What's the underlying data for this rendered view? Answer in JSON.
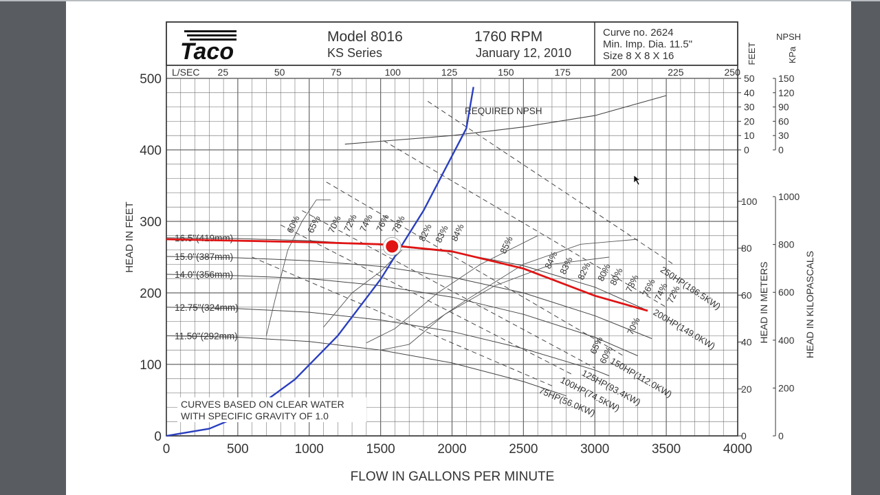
{
  "header": {
    "logo_text": "Taco",
    "model": "Model 8016",
    "series": "KS Series",
    "rpm": "1760 RPM",
    "date": "January 12, 2010",
    "curve_no": "Curve no. 2624",
    "min_imp": "Min. Imp. Dia. 11.5\"",
    "size": "Size 8 X 8 X 16"
  },
  "note": {
    "line1": "CURVES BASED ON CLEAR WATER",
    "line2": "WITH SPECIFIC GRAVITY OF 1.0"
  },
  "colors": {
    "system_curve": "#2a3fbf",
    "operating_curve": "#e01414",
    "point": "#e01414",
    "grid": "#555555"
  },
  "chart_data": {
    "type": "line",
    "xlabel": "FLOW IN GALLONS PER MINUTE",
    "ylabel": "HEAD IN FEET",
    "xlim": [
      0,
      4000
    ],
    "ylim": [
      0,
      500
    ],
    "x_ticks": [
      "0",
      "500",
      "1000",
      "1500",
      "2000",
      "2500",
      "3000",
      "3500",
      "4000"
    ],
    "y_ticks": [
      "0",
      "100",
      "200",
      "300",
      "400",
      "500"
    ],
    "lsec_axis": {
      "label": "L/SEC",
      "ticks": [
        "25",
        "50",
        "75",
        "100",
        "125",
        "150",
        "175",
        "200",
        "225",
        "250"
      ]
    },
    "npsh_axis": {
      "label": "NPSH",
      "feet_label": "FEET",
      "kpa_label": "KPa",
      "feet_ticks": [
        "50",
        "40",
        "30",
        "20",
        "10",
        "0"
      ],
      "kpa_ticks": [
        "150",
        "120",
        "90",
        "60",
        "30",
        "0"
      ]
    },
    "meters_axis": {
      "label": "HEAD IN METERS",
      "ticks": [
        "100",
        "80",
        "60",
        "40",
        "20",
        "0"
      ]
    },
    "kpa_axis": {
      "label": "HEAD IN KILOPASCALS",
      "ticks": [
        "1000",
        "800",
        "600",
        "400",
        "200",
        "0"
      ]
    },
    "impellers": [
      {
        "label": "16.5\"(419mm)",
        "x": [
          0,
          500,
          1000,
          1500,
          2000,
          2500,
          3000,
          3350
        ],
        "y": [
          277,
          276,
          273,
          267,
          257,
          238,
          208,
          177
        ]
      },
      {
        "label": "15.0\"(387mm)",
        "x": [
          0,
          500,
          1000,
          1500,
          2000,
          2500,
          3000,
          3400
        ],
        "y": [
          251,
          249,
          245,
          237,
          222,
          200,
          168,
          136
        ]
      },
      {
        "label": "14.0\"(356mm)",
        "x": [
          0,
          500,
          1000,
          1500,
          2000,
          2500,
          3000,
          3300
        ],
        "y": [
          226,
          224,
          220,
          210,
          194,
          170,
          138,
          112
        ]
      },
      {
        "label": "12.75\"(324mm)",
        "x": [
          0,
          500,
          1000,
          1500,
          2000,
          2500,
          3000,
          3100
        ],
        "y": [
          180,
          178,
          173,
          162,
          146,
          122,
          92,
          84
        ]
      },
      {
        "label": "11.50\"(292mm)",
        "x": [
          0,
          500,
          1000,
          1500,
          2000,
          2500,
          2800
        ],
        "y": [
          140,
          138,
          132,
          120,
          102,
          76,
          56
        ]
      }
    ],
    "system_curve": {
      "name": "",
      "x": [
        0,
        300,
        600,
        900,
        1200,
        1500,
        1800,
        2100,
        2150
      ],
      "y": [
        0,
        10,
        35,
        79,
        140,
        219,
        315,
        430,
        488
      ]
    },
    "operating_curve": {
      "name": "",
      "x": [
        0,
        500,
        1000,
        1500,
        1600,
        2000,
        2500,
        3000,
        3370
      ],
      "y": [
        275,
        273,
        271,
        268,
        266,
        258,
        234,
        196,
        175
      ]
    },
    "operating_point": {
      "x": 1580,
      "y": 265
    },
    "npsh_curve": {
      "label": "REQUIRED NPSH",
      "x": [
        1250,
        1500,
        2000,
        2500,
        3000,
        3500
      ],
      "y": [
        4,
        6,
        10,
        16,
        24,
        38
      ]
    },
    "efficiency_labels": [
      "60%",
      "65%",
      "70%",
      "72%",
      "74%",
      "76%",
      "78%",
      "80%",
      "82%",
      "83%",
      "84%",
      "85%",
      "84%",
      "83%",
      "82%",
      "80%",
      "78%",
      "76%",
      "74%",
      "72%",
      "70%",
      "65%",
      "60%"
    ],
    "hp_lines": [
      {
        "label": "250HP(186.5KW)",
        "x": [
          1830,
          3550
        ],
        "y": [
          468,
          240
        ]
      },
      {
        "label": "200HP(149.0KW)",
        "x": [
          1520,
          3500
        ],
        "y": [
          413,
          180
        ]
      },
      {
        "label": "150HP(112.0KW)",
        "x": [
          1120,
          3200
        ],
        "y": [
          355,
          112
        ]
      },
      {
        "label": "125HP(93.4KW)",
        "x": [
          950,
          3000
        ],
        "y": [
          315,
          95
        ]
      },
      {
        "label": "100HP(74.5KW)",
        "x": [
          800,
          2850
        ],
        "y": [
          295,
          85
        ]
      },
      {
        "label": "75HP(56.0KW)",
        "x": [
          600,
          2700
        ],
        "y": [
          250,
          70
        ]
      }
    ]
  }
}
